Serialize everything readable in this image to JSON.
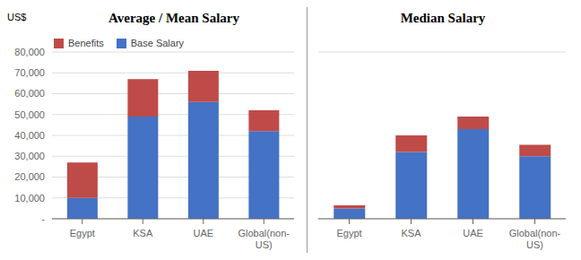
{
  "chart_data": [
    {
      "type": "bar",
      "title": "Average / Mean Salary",
      "ylabel": "US$",
      "categories": [
        "Egypt",
        "KSA",
        "UAE",
        "Global(non-\nUS)"
      ],
      "series": [
        {
          "name": "Base Salary",
          "color": "#4472C4",
          "values": [
            10000,
            49000,
            56000,
            42000
          ]
        },
        {
          "name": "Benefits",
          "color": "#BE4B48",
          "values": [
            17000,
            18000,
            15000,
            10000
          ]
        }
      ],
      "stacked": true,
      "ylim": [
        0,
        80000
      ],
      "yticks": [
        {
          "value": 0,
          "label": "-"
        },
        {
          "value": 10000,
          "label": "10,000"
        },
        {
          "value": 20000,
          "label": "20,000"
        },
        {
          "value": 30000,
          "label": "30,000"
        },
        {
          "value": 40000,
          "label": "40,000"
        },
        {
          "value": 50000,
          "label": "50,000"
        },
        {
          "value": 60000,
          "label": "60,000"
        },
        {
          "value": 70000,
          "label": "70,000"
        },
        {
          "value": 80000,
          "label": "80,000"
        }
      ],
      "grid": true,
      "legend": "upper left"
    },
    {
      "type": "bar",
      "title": "Median Salary",
      "categories": [
        "Egypt",
        "KSA",
        "UAE",
        "Global(non-\nUS)"
      ],
      "series": [
        {
          "name": "Base Salary",
          "color": "#4472C4",
          "values": [
            5000,
            32000,
            43000,
            30000
          ]
        },
        {
          "name": "Benefits",
          "color": "#BE4B48",
          "values": [
            1500,
            8000,
            6000,
            5500
          ]
        }
      ],
      "stacked": true,
      "ylim": [
        0,
        80000
      ],
      "yticks": [
        0,
        10000,
        20000,
        30000,
        40000,
        50000,
        60000,
        70000,
        80000
      ],
      "grid": true,
      "tick_labels": "x"
    }
  ]
}
